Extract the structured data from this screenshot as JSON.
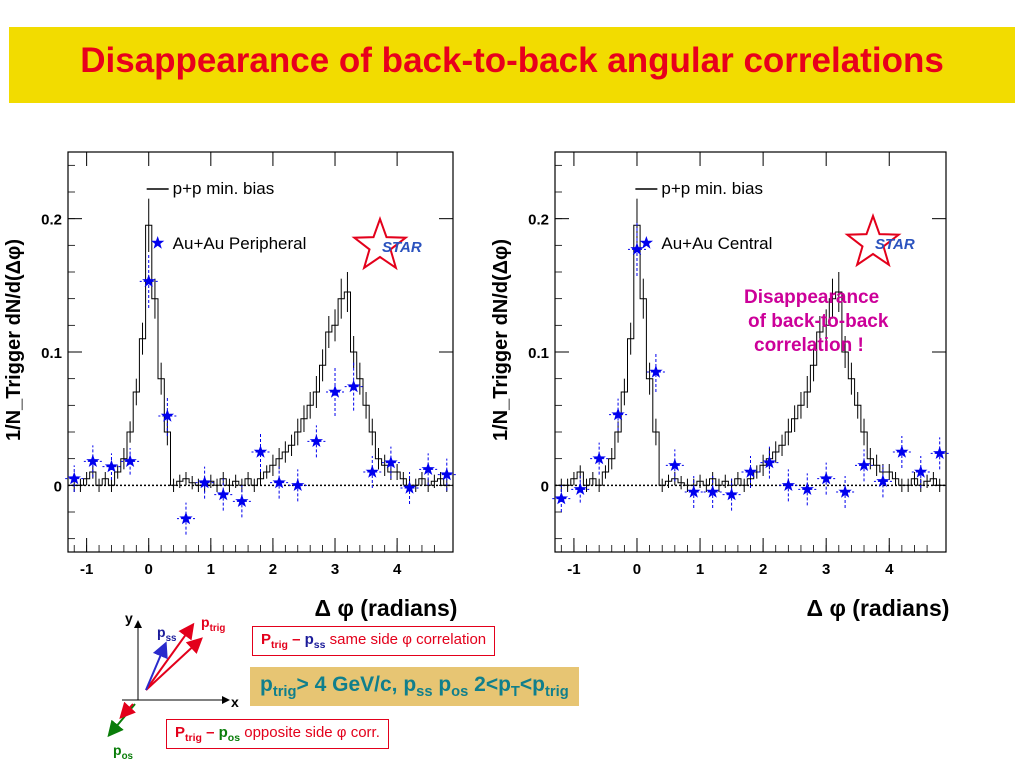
{
  "title": "Disappearance of back-to-back angular correlations",
  "chart_data": [
    {
      "type": "scatter",
      "xlabel": "Δ φ (radians)",
      "ylabel": "1/N_Trigger dN/d(Δφ)",
      "xlim": [
        -1.3,
        4.9
      ],
      "ylim": [
        -0.05,
        0.25
      ],
      "x_ticks": [
        "-1",
        "0",
        "1",
        "2",
        "3",
        "4"
      ],
      "y_ticks": [
        "0",
        "0.1",
        "0.2"
      ],
      "legend": {
        "placement": "top-right",
        "entries": [
          "p+p min. bias",
          "Au+Au Peripheral"
        ]
      },
      "logo": "STAR",
      "series": [
        {
          "name": "p+p min. bias",
          "style": "histogram",
          "x": [
            -1.2,
            -1.1,
            -1.0,
            -0.9,
            -0.8,
            -0.7,
            -0.6,
            -0.5,
            -0.4,
            -0.3,
            -0.2,
            -0.1,
            0.0,
            0.1,
            0.2,
            0.3,
            0.4,
            0.5,
            0.6,
            0.7,
            0.8,
            0.9,
            1.0,
            1.1,
            1.2,
            1.3,
            1.4,
            1.5,
            1.6,
            1.7,
            1.8,
            1.9,
            2.0,
            2.1,
            2.2,
            2.3,
            2.4,
            2.5,
            2.6,
            2.7,
            2.8,
            2.9,
            3.0,
            3.1,
            3.2,
            3.3,
            3.4,
            3.5,
            3.6,
            3.7,
            3.8,
            3.9,
            4.0,
            4.1,
            4.2,
            4.3,
            4.4,
            4.5,
            4.6,
            4.7,
            4.8
          ],
          "values": [
            0.0,
            0.0,
            0.005,
            0.01,
            0.0,
            0.005,
            0.0,
            0.01,
            0.02,
            0.04,
            0.07,
            0.11,
            0.195,
            0.14,
            0.08,
            0.04,
            0.0,
            0.003,
            0.005,
            0.002,
            0.0,
            0.0,
            0.003,
            0.0,
            0.005,
            0.0,
            0.003,
            0.0,
            0.005,
            0.0,
            0.005,
            0.01,
            0.015,
            0.02,
            0.025,
            0.03,
            0.04,
            0.05,
            0.06,
            0.07,
            0.09,
            0.115,
            0.12,
            0.14,
            0.145,
            0.1,
            0.08,
            0.06,
            0.04,
            0.02,
            0.015,
            0.01,
            0.01,
            0.005,
            0.0,
            0.0,
            0.005,
            0.0,
            0.003,
            0.005,
            0.0
          ],
          "errors": [
            0.005,
            0.005,
            0.005,
            0.005,
            0.005,
            0.005,
            0.005,
            0.005,
            0.008,
            0.008,
            0.01,
            0.012,
            0.02,
            0.015,
            0.012,
            0.01,
            0.005,
            0.005,
            0.005,
            0.005,
            0.005,
            0.005,
            0.005,
            0.005,
            0.005,
            0.005,
            0.005,
            0.005,
            0.005,
            0.005,
            0.005,
            0.005,
            0.008,
            0.008,
            0.008,
            0.008,
            0.01,
            0.01,
            0.01,
            0.012,
            0.012,
            0.012,
            0.012,
            0.015,
            0.015,
            0.012,
            0.012,
            0.01,
            0.01,
            0.008,
            0.008,
            0.006,
            0.006,
            0.005,
            0.005,
            0.005,
            0.005,
            0.005,
            0.005,
            0.005,
            0.005
          ]
        },
        {
          "name": "Au+Au Peripheral",
          "style": "stars",
          "x": [
            -1.2,
            -0.9,
            -0.6,
            -0.3,
            0.0,
            0.3,
            0.6,
            0.9,
            1.2,
            1.5,
            1.8,
            2.1,
            2.4,
            2.7,
            3.0,
            3.3,
            3.6,
            3.9,
            4.2,
            4.5,
            4.8
          ],
          "values": [
            0.005,
            0.018,
            0.014,
            0.018,
            0.153,
            0.052,
            -0.025,
            0.002,
            -0.007,
            -0.012,
            0.025,
            0.002,
            0.0,
            0.033,
            0.07,
            0.074,
            0.01,
            0.017,
            -0.002,
            0.012,
            0.008
          ],
          "errors": [
            0.01,
            0.012,
            0.01,
            0.01,
            0.02,
            0.015,
            0.012,
            0.012,
            0.012,
            0.012,
            0.015,
            0.012,
            0.012,
            0.012,
            0.018,
            0.018,
            0.012,
            0.012,
            0.012,
            0.012,
            0.012
          ]
        }
      ]
    },
    {
      "type": "scatter",
      "xlabel": "Δ φ (radians)",
      "ylabel": "1/N_Trigger dN/d(Δφ)",
      "xlim": [
        -1.3,
        4.9
      ],
      "ylim": [
        -0.05,
        0.25
      ],
      "x_ticks": [
        "-1",
        "0",
        "1",
        "2",
        "3",
        "4"
      ],
      "y_ticks": [
        "0",
        "0.1",
        "0.2"
      ],
      "legend": {
        "placement": "top-right",
        "entries": [
          "p+p min. bias",
          "Au+Au Central"
        ]
      },
      "logo": "STAR",
      "annotation": [
        "Disappearance",
        "of back-to-back",
        "correlation !"
      ],
      "series": [
        {
          "name": "p+p min. bias",
          "style": "histogram",
          "x": [
            -1.2,
            -1.1,
            -1.0,
            -0.9,
            -0.8,
            -0.7,
            -0.6,
            -0.5,
            -0.4,
            -0.3,
            -0.2,
            -0.1,
            0.0,
            0.1,
            0.2,
            0.3,
            0.4,
            0.5,
            0.6,
            0.7,
            0.8,
            0.9,
            1.0,
            1.1,
            1.2,
            1.3,
            1.4,
            1.5,
            1.6,
            1.7,
            1.8,
            1.9,
            2.0,
            2.1,
            2.2,
            2.3,
            2.4,
            2.5,
            2.6,
            2.7,
            2.8,
            2.9,
            3.0,
            3.1,
            3.2,
            3.3,
            3.4,
            3.5,
            3.6,
            3.7,
            3.8,
            3.9,
            4.0,
            4.1,
            4.2,
            4.3,
            4.4,
            4.5,
            4.6,
            4.7,
            4.8
          ],
          "values": [
            0.0,
            0.0,
            0.005,
            0.01,
            0.0,
            0.005,
            0.0,
            0.01,
            0.02,
            0.04,
            0.07,
            0.11,
            0.195,
            0.14,
            0.08,
            0.04,
            0.0,
            0.003,
            0.005,
            0.002,
            0.0,
            0.0,
            0.003,
            0.0,
            0.005,
            0.0,
            0.003,
            0.0,
            0.005,
            0.0,
            0.005,
            0.01,
            0.015,
            0.02,
            0.025,
            0.03,
            0.04,
            0.05,
            0.06,
            0.07,
            0.09,
            0.115,
            0.12,
            0.14,
            0.145,
            0.1,
            0.08,
            0.06,
            0.04,
            0.02,
            0.015,
            0.01,
            0.01,
            0.005,
            0.0,
            0.0,
            0.005,
            0.0,
            0.003,
            0.005,
            0.0
          ],
          "errors": [
            0.005,
            0.005,
            0.005,
            0.005,
            0.005,
            0.005,
            0.005,
            0.005,
            0.008,
            0.008,
            0.01,
            0.012,
            0.02,
            0.015,
            0.012,
            0.01,
            0.005,
            0.005,
            0.005,
            0.005,
            0.005,
            0.005,
            0.005,
            0.005,
            0.005,
            0.005,
            0.005,
            0.005,
            0.005,
            0.005,
            0.005,
            0.005,
            0.008,
            0.008,
            0.008,
            0.008,
            0.01,
            0.01,
            0.01,
            0.012,
            0.012,
            0.012,
            0.012,
            0.015,
            0.015,
            0.012,
            0.012,
            0.01,
            0.01,
            0.008,
            0.008,
            0.006,
            0.006,
            0.005,
            0.005,
            0.005,
            0.005,
            0.005,
            0.005,
            0.005,
            0.005
          ]
        },
        {
          "name": "Au+Au Central",
          "style": "stars",
          "x": [
            -1.2,
            -0.9,
            -0.6,
            -0.3,
            0.0,
            0.3,
            0.6,
            0.9,
            1.2,
            1.5,
            1.8,
            2.1,
            2.4,
            2.7,
            3.0,
            3.3,
            3.6,
            3.9,
            4.2,
            4.5,
            4.8
          ],
          "values": [
            -0.01,
            -0.003,
            0.02,
            0.053,
            0.177,
            0.085,
            0.015,
            -0.005,
            -0.005,
            -0.007,
            0.01,
            0.017,
            0.0,
            -0.003,
            0.005,
            -0.005,
            0.015,
            0.003,
            0.025,
            0.01,
            0.024
          ],
          "errors": [
            0.01,
            0.01,
            0.012,
            0.012,
            0.02,
            0.015,
            0.012,
            0.012,
            0.012,
            0.012,
            0.012,
            0.012,
            0.012,
            0.012,
            0.012,
            0.012,
            0.012,
            0.012,
            0.012,
            0.012,
            0.012
          ]
        }
      ]
    }
  ],
  "vector_diagram": {
    "axis_x": "x",
    "axis_y": "y",
    "p_trig": [
      "p",
      "trig"
    ],
    "p_ss": [
      "p",
      "ss"
    ],
    "p_os": [
      "p",
      "os"
    ]
  },
  "box_same": {
    "p": "P",
    "trig": "trig",
    "dash": " – ",
    "p2": "p",
    "ss": "ss",
    "text": " same side ",
    "phi": "φ",
    "tail": " correlation"
  },
  "box_cond": {
    "a": "p",
    "trig": "trig",
    "b": "> 4 GeV/c, p",
    "ss": "ss",
    "c": " p",
    "os": "os",
    "d": " 2<p",
    "T": "T",
    "e": "<p",
    "trig2": "trig"
  },
  "box_opp": {
    "p": "P",
    "trig": "trig",
    "dash": " – ",
    "p2": "p",
    "os": "os",
    "text": " opposite side ",
    "phi": "φ",
    "tail": " corr."
  },
  "colors": {
    "title": "#e8001c",
    "title_bg": "#f2dc00",
    "star_marker": "#0000ee",
    "annotation": "#cc0099",
    "cond_bg": "#e7c573",
    "cond_text": "#107f8c",
    "vec_red": "#e3001b",
    "vec_blue": "#2a2acc",
    "vec_green": "#0a7d0a"
  }
}
